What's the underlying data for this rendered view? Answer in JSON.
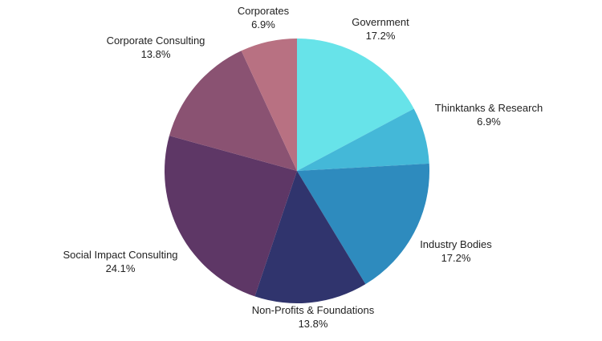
{
  "chart_data": {
    "type": "pie",
    "categories": [
      "Government",
      "Thinktanks & Research",
      "Industry Bodies",
      "Non-Profits & Foundations",
      "Social Impact Consulting",
      "Corporate Consulting",
      "Corporates"
    ],
    "values": [
      17.2,
      6.9,
      17.2,
      13.8,
      24.1,
      13.8,
      6.9
    ],
    "value_labels": [
      "17.2%",
      "6.9%",
      "17.2%",
      "13.8%",
      "24.1%",
      "13.8%",
      "6.9%"
    ],
    "colors": [
      "#67E3E9",
      "#44B8D8",
      "#2E8BBE",
      "#30346D",
      "#5E3766",
      "#8A5272",
      "#B87182"
    ],
    "title": "",
    "legend": "none"
  }
}
